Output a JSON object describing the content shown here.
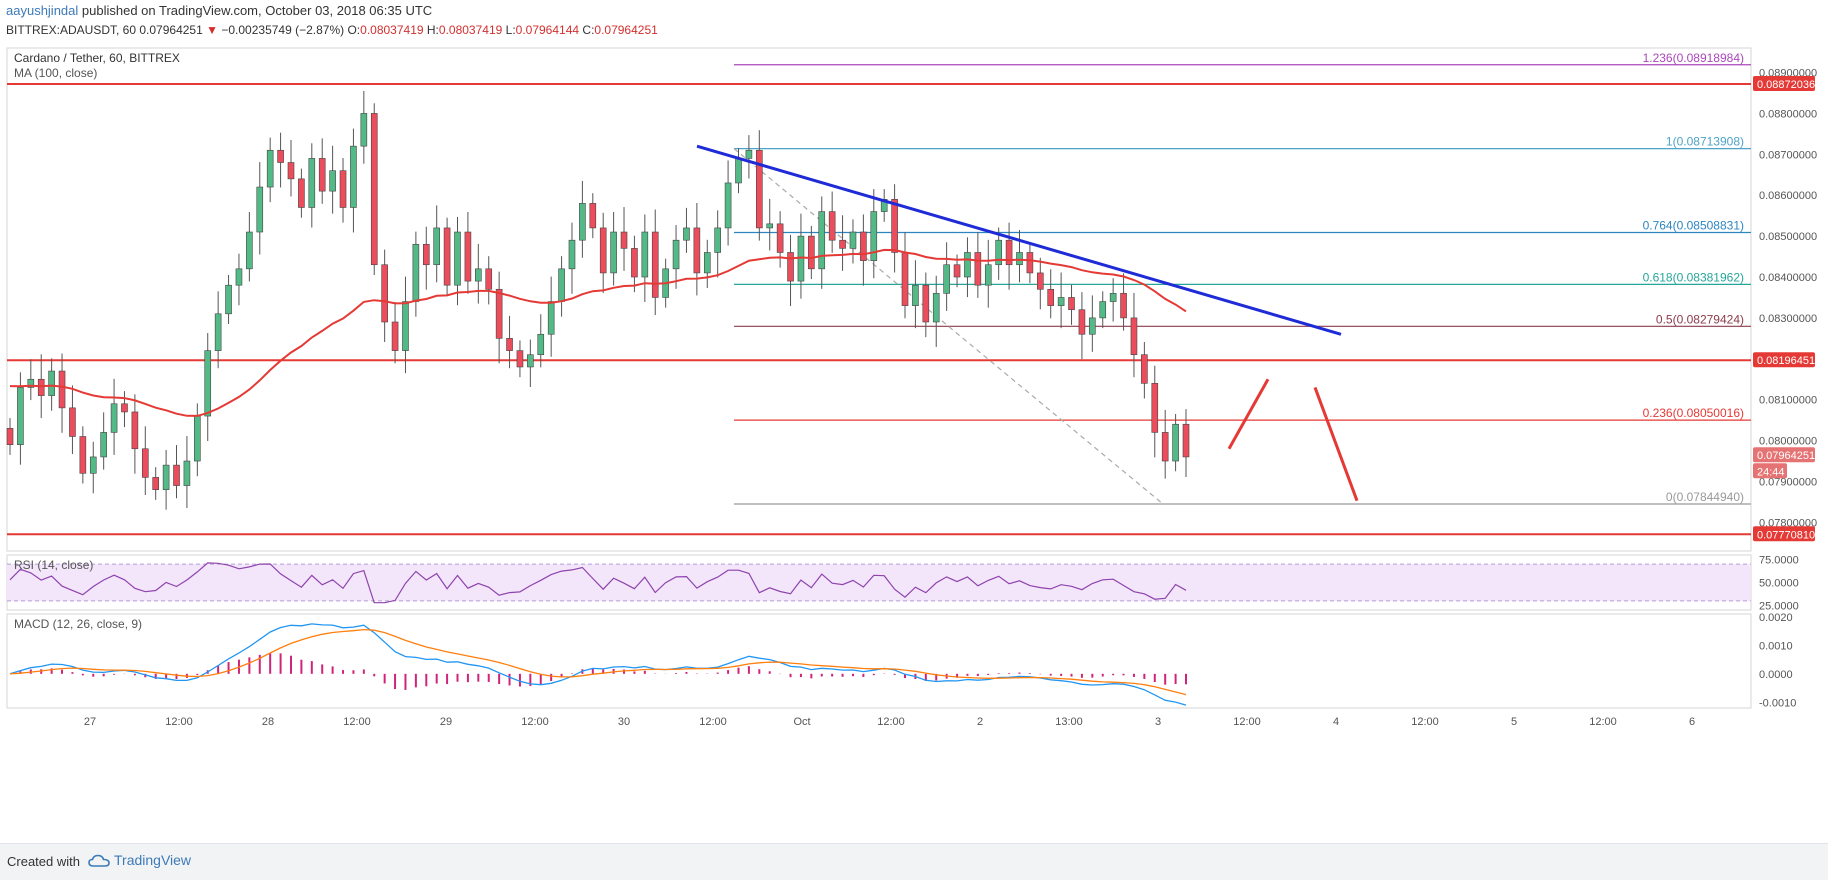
{
  "header": {
    "user": "aayushjindal",
    "published_text": "published on TradingView.com, October 03, 2018 06:35 UTC",
    "symbol_line": "BITTREX:ADAUSDT, 60",
    "last": "0.07964251",
    "arrow": "▼",
    "change": "−0.00235749 (−2.87%)",
    "o_label": "O:",
    "o_val": "0.08037419",
    "h_label": "H:",
    "h_val": "0.08037419",
    "l_label": "L:",
    "l_val": "0.07964144",
    "c_label": "C:",
    "c_val": "0.07964251"
  },
  "chart_data": {
    "type": "candlestick",
    "title": "Cardano / Tether, 60, BITTREX",
    "indicator_label": "MA (100, close)",
    "ylim": [
      0.0773,
      0.0896
    ],
    "y_ticks": [
      "0.08900000",
      "0.08800000",
      "0.08700000",
      "0.08600000",
      "0.08500000",
      "0.08400000",
      "0.08300000",
      "0.08100000",
      "0.08000000",
      "0.07900000",
      "0.07800000"
    ],
    "x_ticks": [
      "27",
      "12:00",
      "28",
      "12:00",
      "29",
      "12:00",
      "30",
      "12:00",
      "Oct",
      "12:00",
      "2",
      "13:00",
      "3",
      "12:00",
      "4",
      "12:00",
      "5",
      "12:00",
      "6"
    ],
    "price_badges": [
      {
        "label": "0.08872036",
        "price": 0.08872036,
        "color": "#e53935"
      },
      {
        "label": "0.08196451",
        "price": 0.08196451,
        "color": "#e53935"
      },
      {
        "label": "0.07964251",
        "price": 0.07964251,
        "color": "#e57373"
      },
      {
        "label": "24:44",
        "price": 0.07925,
        "color": "#e57373"
      },
      {
        "label": "0.07770810",
        "price": 0.0777081,
        "color": "#e53935"
      }
    ],
    "horizontal_lines": [
      {
        "price": 0.08872036,
        "color": "#e53935"
      },
      {
        "price": 0.08196451,
        "color": "#e53935"
      },
      {
        "price": 0.0777081,
        "color": "#e53935"
      }
    ],
    "fib_levels": [
      {
        "label": "1.236(0.08918984)",
        "price": 0.08918984,
        "color": "#ab47bc"
      },
      {
        "label": "1(0.08713908)",
        "price": 0.08713908,
        "color": "#4fa3c7"
      },
      {
        "label": "0.764(0.08508831)",
        "price": 0.08508831,
        "color": "#2e86c1"
      },
      {
        "label": "0.618(0.08381962)",
        "price": 0.08381962,
        "color": "#26a69a"
      },
      {
        "label": "0.5(0.08279424)",
        "price": 0.08279424,
        "color": "#8d3b4a"
      },
      {
        "label": "0.236(0.08050016)",
        "price": 0.08050016,
        "color": "#e53935"
      },
      {
        "label": "0(0.07844940)",
        "price": 0.0784494,
        "color": "#999999"
      }
    ],
    "closes": [
      0.0799,
      0.0813,
      0.0815,
      0.0811,
      0.0817,
      0.0808,
      0.0801,
      0.0792,
      0.0796,
      0.0802,
      0.0809,
      0.0807,
      0.0798,
      0.0791,
      0.0788,
      0.0794,
      0.0789,
      0.0795,
      0.0806,
      0.0822,
      0.0831,
      0.0838,
      0.0842,
      0.0851,
      0.0862,
      0.0871,
      0.0868,
      0.0864,
      0.0857,
      0.0869,
      0.0861,
      0.0866,
      0.0857,
      0.0872,
      0.088,
      0.0843,
      0.0829,
      0.0822,
      0.0834,
      0.0848,
      0.0843,
      0.0852,
      0.0838,
      0.0851,
      0.0839,
      0.0842,
      0.0837,
      0.0825,
      0.0822,
      0.0818,
      0.0821,
      0.0826,
      0.0834,
      0.0842,
      0.0849,
      0.0858,
      0.0852,
      0.0841,
      0.0851,
      0.0847,
      0.084,
      0.0851,
      0.0835,
      0.0842,
      0.0849,
      0.0852,
      0.0841,
      0.0846,
      0.0852,
      0.0863,
      0.0869,
      0.0871,
      0.0852,
      0.0853,
      0.0846,
      0.0839,
      0.085,
      0.0842,
      0.0856,
      0.0849,
      0.0847,
      0.0851,
      0.0844,
      0.0856,
      0.0859,
      0.0846,
      0.0833,
      0.0838,
      0.0829,
      0.0836,
      0.0843,
      0.084,
      0.0846,
      0.0838,
      0.0843,
      0.0849,
      0.0843,
      0.0846,
      0.0841,
      0.0837,
      0.0833,
      0.0835,
      0.0832,
      0.0826,
      0.083,
      0.0834,
      0.0836,
      0.083,
      0.0821,
      0.0814,
      0.0802,
      0.0795,
      0.0804,
      0.0796
    ],
    "ma_label_note": "MA (100, close)",
    "rsi": {
      "label": "RSI (14, close)",
      "ylim": [
        20,
        80
      ],
      "ticks": [
        "75.0000",
        "50.0000",
        "25.0000"
      ],
      "band": [
        30,
        70
      ]
    },
    "macd": {
      "label": "MACD (12, 26, close, 9)",
      "ylim": [
        -0.0012,
        0.0021
      ],
      "ticks": [
        "0.0020",
        "0.0010",
        "0.0000",
        "-0.0010"
      ]
    },
    "annotations": {
      "trendline_color": "#1e2bd6",
      "projection_color": "#e53935"
    }
  },
  "footer": {
    "created_with": "Created with",
    "brand": "TradingView"
  }
}
